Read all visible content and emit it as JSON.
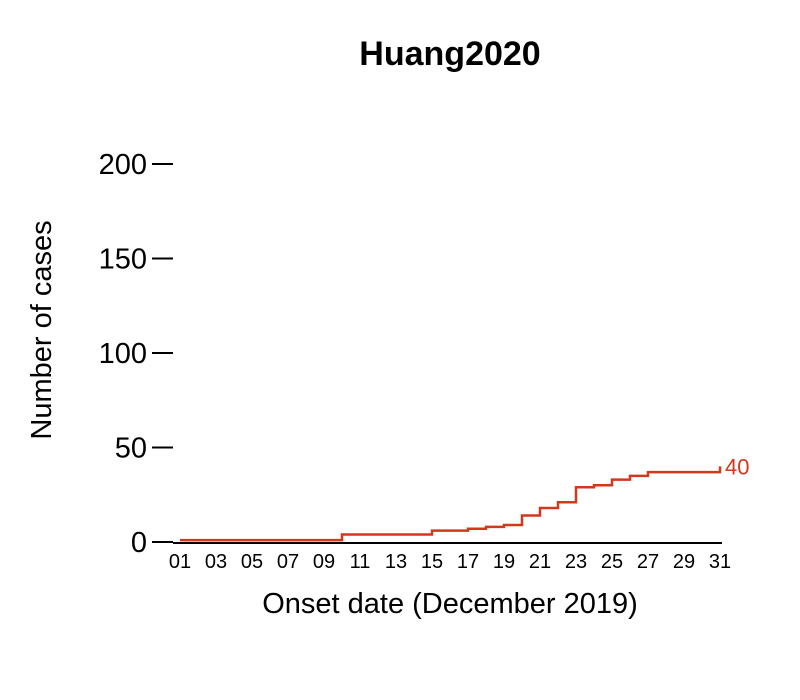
{
  "chart_data": {
    "type": "line",
    "step": true,
    "title": "Huang2020",
    "xlabel": "Onset date (December 2019)",
    "ylabel": "Number of cases",
    "ylim": [
      0,
      200
    ],
    "yticks": [
      0,
      50,
      100,
      150,
      200
    ],
    "ytick_labels": [
      "0",
      "50",
      "100",
      "150",
      "200"
    ],
    "xlim": [
      1,
      31
    ],
    "xtick_labels": [
      "01",
      "03",
      "05",
      "07",
      "09",
      "11",
      "13",
      "15",
      "17",
      "19",
      "21",
      "23",
      "25",
      "27",
      "29",
      "31"
    ],
    "grid": false,
    "series": [
      {
        "color": "#d2381c",
        "x": [
          1,
          2,
          3,
          4,
          5,
          6,
          7,
          8,
          9,
          10,
          11,
          12,
          13,
          14,
          15,
          16,
          17,
          18,
          19,
          20,
          21,
          22,
          23,
          24,
          25,
          26,
          27,
          28,
          29,
          30,
          31
        ],
        "values": [
          1,
          1,
          1,
          1,
          1,
          1,
          1,
          1,
          1,
          4,
          4,
          4,
          4,
          4,
          6,
          6,
          7,
          8,
          9,
          14,
          18,
          21,
          29,
          30,
          33,
          35,
          37,
          37,
          37,
          37,
          40
        ],
        "end_label": "40"
      }
    ]
  }
}
